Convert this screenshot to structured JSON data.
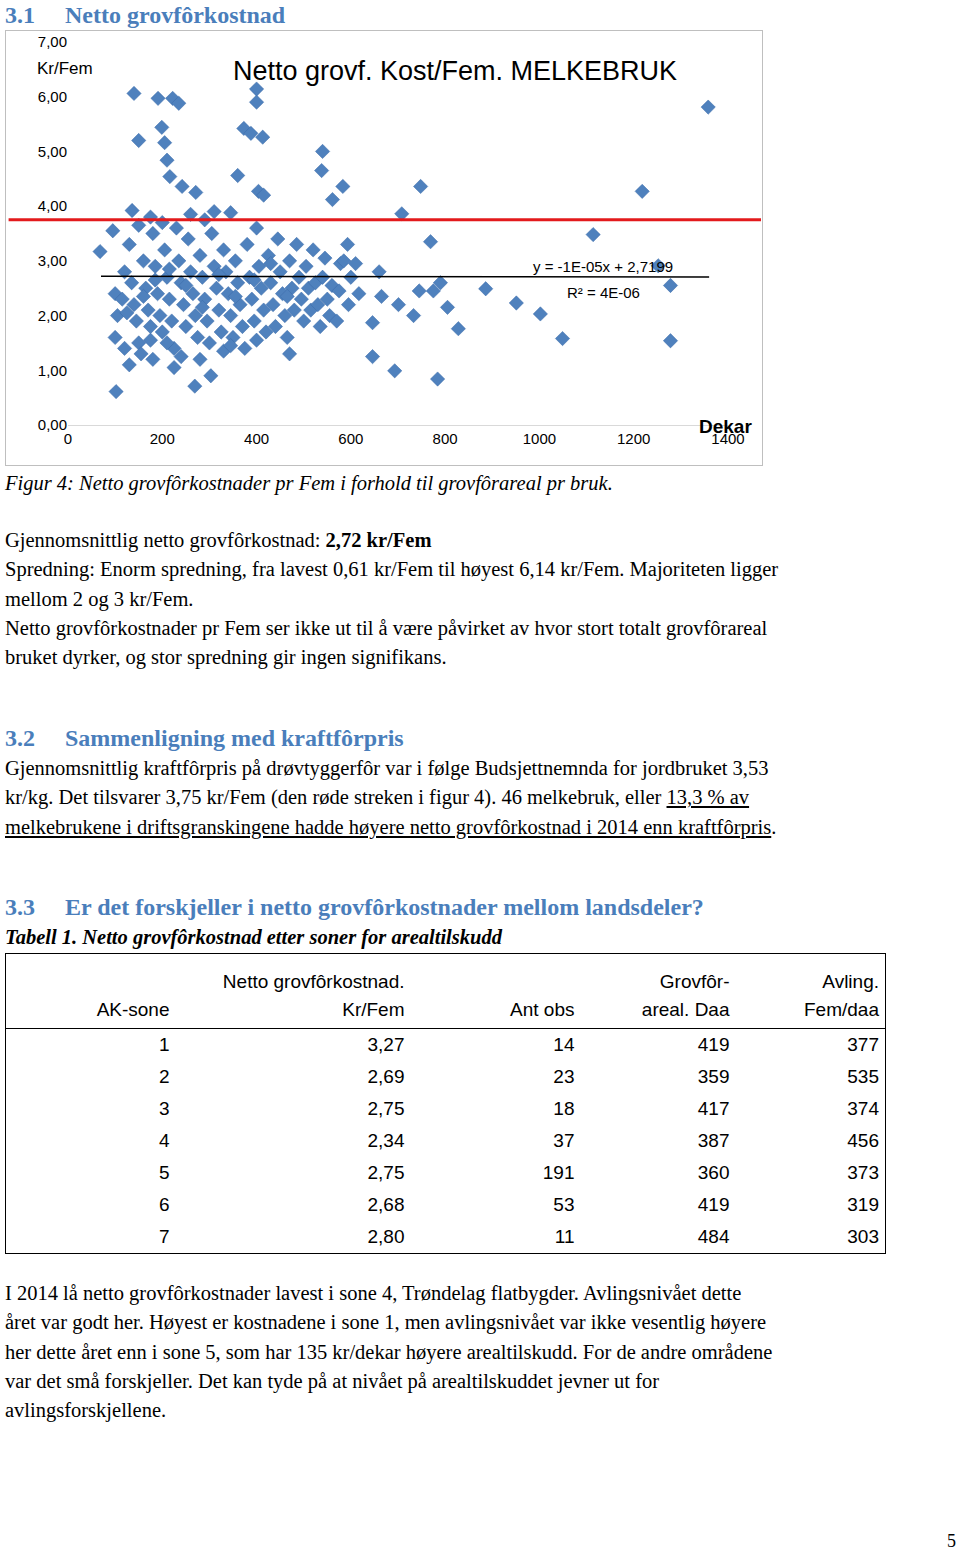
{
  "document": {
    "heading_1": "3.1 Netto grovfôrkostnad",
    "caption": "Figur 4: Netto grovfôrkostnader pr Fem i forhold til grovfôrareal pr bruk.",
    "text_1": [
      [
        {
          "t": "Gjennomsnittlig netto grovfôrkostnad: "
        },
        {
          "t": "2,72 kr/Fem",
          "b": true
        }
      ],
      [
        {
          "t": "Spredning: Enorm spredning, fra lavest 0,61 kr/Fem til høyest 6,14 kr/Fem. Majoriteten ligger"
        }
      ],
      [
        {
          "t": "mellom 2 og 3 kr/Fem."
        }
      ],
      [
        {
          "t": "Netto grovfôrkostnader pr Fem ser ikke ut til å være påvirket av hvor stort totalt grovfôrareal"
        }
      ],
      [
        {
          "t": "bruket dyrker, og stor spredning gir ingen signifikans."
        }
      ]
    ],
    "heading_2": "3.2 Sammenligning med kraftfôrpris",
    "text_2": [
      [
        {
          "t": "Gjennomsnittlig kraftfôrpris på drøvtyggerfôr var i følge Budsjettnemnda for jordbruket 3,53"
        }
      ],
      [
        {
          "t": "kr/kg. Det tilsvarer 3,75 kr/Fem (den røde streken i figur 4). 46 melkebruk, eller "
        },
        {
          "t": "13,3 % av ",
          "u": true
        }
      ],
      [
        {
          "t": "melkebrukene i driftsgranskingene hadde høyere netto grovfôrkostnad i 2014 enn kraftfôrpris",
          "u": true
        },
        {
          "t": "."
        }
      ]
    ],
    "heading_3": "3.3 Er det forskjeller i netto grovfôrkostnader mellom landsdeler?",
    "table_caption": "Tabell 1. Netto grovfôrkostnad etter soner for arealtilskudd",
    "table": {
      "header": [
        [
          "AK-sone"
        ],
        [
          "Netto grovfôrkostnad.",
          "Kr/Fem"
        ],
        [
          "Ant obs"
        ],
        [
          "Grovfôr-",
          "areal. Daa"
        ],
        [
          "Avling.",
          "Fem/daa"
        ]
      ],
      "rows": [
        [
          "1",
          "3,27",
          "14",
          "419",
          "377"
        ],
        [
          "2",
          "2,69",
          "23",
          "359",
          "535"
        ],
        [
          "3",
          "2,75",
          "18",
          "417",
          "374"
        ],
        [
          "4",
          "2,34",
          "37",
          "387",
          "456"
        ],
        [
          "5",
          "2,75",
          "191",
          "360",
          "373"
        ],
        [
          "6",
          "2,68",
          "53",
          "419",
          "319"
        ],
        [
          "7",
          "2,80",
          "11",
          "484",
          "303"
        ]
      ]
    },
    "text_3": [
      [
        {
          "t": "I 2014 lå netto grovfôrkostnader lavest i sone 4, Trøndelag flatbygder. Avlingsnivået dette"
        }
      ],
      [
        {
          "t": "året var godt her. Høyest er kostnadene i sone 1, men avlingsnivået var ikke vesentlig høyere"
        }
      ],
      [
        {
          "t": "her dette året enn i sone 5, som har 135 kr/dekar høyere arealtilskudd. For de andre områdene"
        }
      ],
      [
        {
          "t": "var det små forskjeller. Det kan tyde på at nivået på arealtilskuddet jevner ut for"
        }
      ],
      [
        {
          "t": "avlingsforskjellene."
        }
      ]
    ],
    "page_number": "5"
  },
  "chart_data": {
    "type": "scatter",
    "title": "Netto grovf. Kost/Fem. MELKEBRUK",
    "ylabel": "Kr/Fem",
    "xlabel": "Dekar",
    "marker": "diamond",
    "color": "#4f81bd",
    "grid": false,
    "xlim": [
      0,
      1400
    ],
    "xticks": [
      0,
      200,
      400,
      600,
      800,
      1000,
      1200,
      1400
    ],
    "ylim": [
      0,
      7
    ],
    "yticks": [
      {
        "value": 0,
        "label": "0,00"
      },
      {
        "value": 1,
        "label": "1,00"
      },
      {
        "value": 2,
        "label": "2,00"
      },
      {
        "value": 3,
        "label": "3,00"
      },
      {
        "value": 4,
        "label": "4,00"
      },
      {
        "value": 5,
        "label": "5,00"
      },
      {
        "value": 6,
        "label": "6,00"
      },
      {
        "value": 7,
        "label": "7,00"
      }
    ],
    "x": [
      140,
      191,
      222,
      235,
      400,
      400,
      1358,
      199,
      373,
      388,
      413,
      150,
      205,
      210,
      540,
      216,
      242,
      360,
      538,
      583,
      748,
      1218,
      136,
      271,
      404,
      415,
      561,
      708,
      310,
      345,
      1114,
      769,
      68,
      95,
      102,
      269,
      303,
      784,
      693,
      646,
      470,
      1252,
      1278,
      1278,
      1049,
      1002,
      951,
      886,
      828,
      805,
      790,
      775,
      745,
      733,
      701,
      665,
      660,
      646,
      617,
      610,
      600,
      593,
      578,
      175,
      100,
      105,
      100,
      120,
      130,
      135,
      140,
      145,
      150,
      155,
      160,
      165,
      170,
      175,
      180,
      185,
      190,
      195,
      200,
      205,
      210,
      215,
      220,
      225,
      230,
      235,
      240,
      245,
      250,
      255,
      260,
      265,
      270,
      275,
      280,
      285,
      290,
      295,
      300,
      305,
      310,
      315,
      320,
      325,
      330,
      335,
      340,
      345,
      350,
      355,
      360,
      365,
      370,
      375,
      380,
      385,
      390,
      395,
      400,
      405,
      410,
      415,
      420,
      425,
      430,
      435,
      440,
      445,
      450,
      455,
      460,
      465,
      470,
      475,
      480,
      485,
      490,
      495,
      500,
      505,
      510,
      515,
      520,
      525,
      530,
      535,
      540,
      545,
      550,
      555,
      560,
      570,
      575,
      585,
      595,
      120,
      130,
      180,
      240,
      330,
      260,
      290,
      200,
      150,
      115,
      125,
      160,
      185,
      215,
      250,
      285,
      320,
      355,
      395,
      430,
      465,
      175,
      210,
      345,
      400,
      280,
      225
    ],
    "values": [
      6.06,
      5.97,
      5.97,
      5.88,
      6.14,
      5.9,
      5.81,
      5.44,
      5.42,
      5.33,
      5.26,
      5.2,
      5.16,
      4.84,
      5.0,
      4.54,
      4.36,
      4.56,
      4.65,
      4.36,
      4.36,
      4.27,
      3.92,
      4.25,
      4.27,
      4.2,
      4.12,
      3.86,
      3.9,
      3.88,
      3.48,
      3.35,
      3.17,
      3.55,
      0.61,
      0.71,
      0.9,
      0.84,
      0.99,
      1.25,
      1.3,
      2.91,
      2.55,
      1.54,
      1.58,
      2.03,
      2.23,
      2.49,
      1.76,
      2.15,
      2.6,
      2.45,
      2.45,
      2.0,
      2.2,
      2.35,
      2.8,
      1.87,
      2.4,
      2.95,
      2.7,
      3.3,
      2.95,
      3.8,
      2.4,
      2.0,
      1.6,
      2.8,
      3.3,
      2.6,
      2.2,
      1.9,
      1.5,
      1.3,
      3.0,
      2.5,
      2.1,
      1.8,
      3.5,
      2.9,
      2.4,
      2.0,
      1.7,
      3.2,
      2.7,
      2.3,
      1.9,
      1.4,
      3.6,
      3.0,
      2.6,
      2.2,
      1.8,
      3.4,
      2.8,
      2.4,
      2.0,
      1.6,
      3.1,
      2.7,
      2.3,
      1.9,
      1.5,
      3.5,
      2.9,
      2.5,
      2.1,
      1.7,
      3.2,
      2.8,
      2.4,
      2.0,
      1.6,
      3.0,
      2.6,
      2.2,
      1.8,
      1.4,
      3.3,
      2.7,
      2.3,
      1.9,
      3.6,
      2.9,
      2.5,
      2.1,
      1.7,
      3.1,
      2.6,
      2.2,
      1.8,
      3.4,
      2.8,
      2.4,
      2.0,
      1.6,
      3.0,
      2.5,
      2.1,
      3.3,
      2.7,
      2.3,
      1.9,
      2.9,
      2.5,
      2.1,
      3.2,
      2.6,
      2.2,
      1.8,
      2.7,
      3.05,
      2.3,
      2.0,
      2.55,
      1.9,
      2.45,
      3.0,
      2.2,
      1.4,
      1.1,
      1.2,
      1.25,
      1.35,
      3.85,
      3.75,
      3.7,
      3.65,
      2.3,
      2.05,
      2.35,
      2.65,
      2.85,
      2.55,
      2.15,
      2.75,
      2.35,
      2.65,
      2.95,
      2.35,
      1.55,
      1.5,
      1.45,
      1.55,
      1.2,
      1.05
    ],
    "reference_line": {
      "y": 3.75,
      "color": "#e31a1c"
    },
    "trendline": {
      "x": [
        70,
        1360
      ],
      "values": [
        2.719,
        2.706
      ],
      "color": "#000000",
      "equation": "y = -1E-05x + 2,7199",
      "r2": "R² = 4E-06",
      "label_x": 1135,
      "label_y": [
        2.9,
        2.43
      ]
    }
  }
}
